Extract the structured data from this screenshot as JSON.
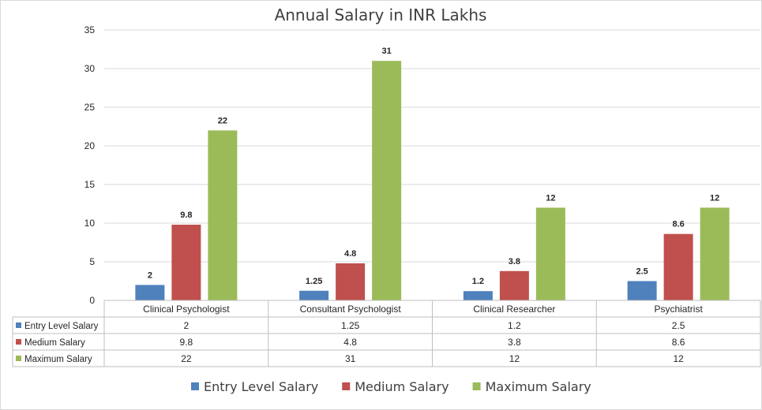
{
  "chart_data": {
    "type": "bar",
    "title": "Annual Salary in INR Lakhs",
    "xlabel": "",
    "ylabel": "",
    "ylim": [
      0,
      35
    ],
    "yticks": [
      0,
      5,
      10,
      15,
      20,
      25,
      30,
      35
    ],
    "grid": true,
    "categories": [
      "Clinical Psychologist",
      "Consultant Psychologist",
      "Clinical Researcher",
      "Psychiatrist"
    ],
    "series": [
      {
        "name": "Entry Level Salary",
        "color": "#4F81BD",
        "values": [
          2,
          1.25,
          1.2,
          2.5
        ]
      },
      {
        "name": "Medium Salary",
        "color": "#C0504D",
        "values": [
          9.8,
          4.8,
          3.8,
          8.6
        ]
      },
      {
        "name": "Maximum Salary",
        "color": "#9BBB59",
        "values": [
          22,
          31,
          12,
          12
        ]
      }
    ],
    "data_table": true,
    "legend": "bottom"
  }
}
